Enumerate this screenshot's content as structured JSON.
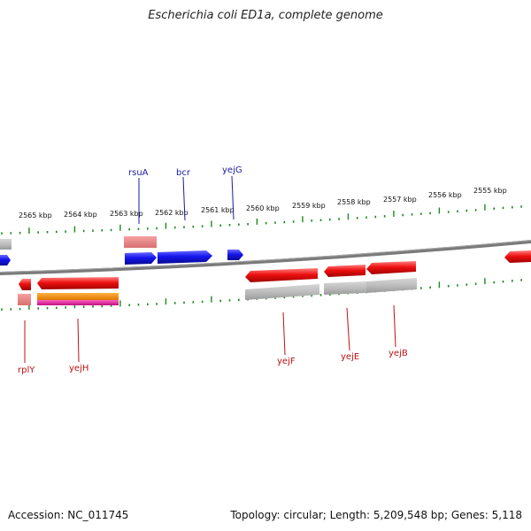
{
  "title": "Escherichia coli ED1a, complete genome",
  "footer": {
    "accession": "Accession: NC_011745",
    "summary": "Topology: circular; Length: 5,209,548 bp; Genes: 5,118"
  },
  "scale_labels": [
    "2565 kbp",
    "2564 kbp",
    "2563 kbp",
    "2562 kbp",
    "2561 kbp",
    "2560 kbp",
    "2559 kbp",
    "2558 kbp",
    "2557 kbp",
    "2556 kbp",
    "2555 kbp"
  ],
  "forward_genes": [
    "rsuA",
    "bcr",
    "yejG"
  ],
  "reverse_genes": [
    "rplY",
    "yejH",
    "yejF",
    "yejE",
    "yejB"
  ],
  "colors": {
    "forward": "#1515ee",
    "reverse": "#ee1111",
    "backbone": "#7a7a7a",
    "tick": "#1a8a1a",
    "fwd_label": "#1a1aa0",
    "rev_label": "#c01010"
  }
}
